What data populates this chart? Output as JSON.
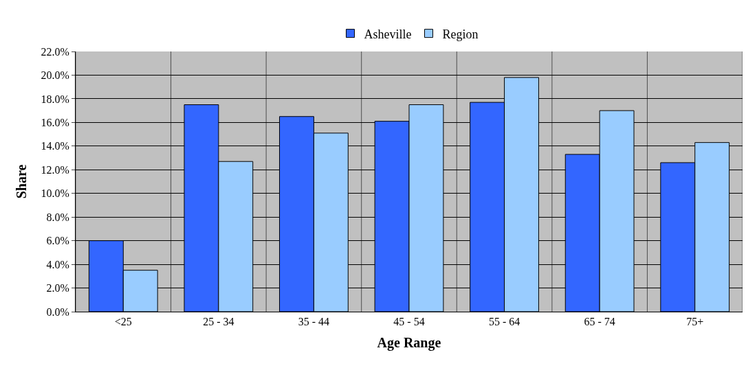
{
  "chart_data": {
    "type": "bar",
    "xlabel": "Age Range",
    "ylabel": "Share",
    "categories": [
      "<25",
      "25 - 34",
      "35 - 44",
      "45 - 54",
      "55 - 64",
      "65 - 74",
      "75+"
    ],
    "series": [
      {
        "name": "Asheville",
        "color": "#3366ff",
        "values": [
          6.0,
          17.5,
          16.5,
          16.1,
          17.7,
          13.3,
          12.6
        ]
      },
      {
        "name": "Region",
        "color": "#99ccff",
        "values": [
          3.5,
          12.7,
          15.1,
          17.5,
          19.8,
          17.0,
          14.3
        ]
      }
    ],
    "ylim": [
      0,
      22
    ],
    "yticks": [
      {
        "value": 0,
        "label": "0.0%"
      },
      {
        "value": 2,
        "label": "2.0%"
      },
      {
        "value": 4,
        "label": "4.0%"
      },
      {
        "value": 6,
        "label": "6.0%"
      },
      {
        "value": 8,
        "label": "8.0%"
      },
      {
        "value": 10,
        "label": "10.0%"
      },
      {
        "value": 12,
        "label": "12.0%"
      },
      {
        "value": 14,
        "label": "14.0%"
      },
      {
        "value": 16,
        "label": "16.0%"
      },
      {
        "value": 18,
        "label": "18.0%"
      },
      {
        "value": 20,
        "label": "20.0%"
      },
      {
        "value": 22,
        "label": "22.0%"
      }
    ],
    "grid": true,
    "legend": "top"
  }
}
